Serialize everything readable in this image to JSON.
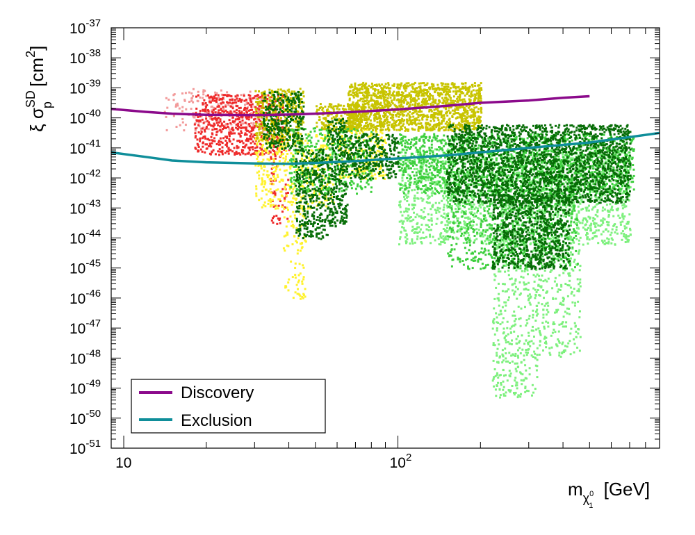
{
  "chart_data": {
    "type": "scatter",
    "title": "",
    "xlabel": "m",
    "xlabel_sub": "χ",
    "xlabel_sub_sup": "0",
    "xlabel_sub_sub": "1",
    "xlabel_unit": "[GeV]",
    "ylabel_prefix": "ξ σ",
    "ylabel_sup": "SD",
    "ylabel_sub": "p",
    "ylabel_unit_open": "[cm",
    "ylabel_unit_sup": "2",
    "ylabel_unit_close": "]",
    "x_scale": "log",
    "y_scale": "log",
    "xlim": [
      9,
      900
    ],
    "ylim_exponent": [
      -51,
      -37
    ],
    "x_ticks": [
      {
        "value": 10,
        "label": "10"
      },
      {
        "value": 100,
        "label": "10",
        "sup": "2"
      }
    ],
    "y_ticks": [
      {
        "exp": -37,
        "base": "10",
        "sup": "-37"
      },
      {
        "exp": -38,
        "base": "10",
        "sup": "-38"
      },
      {
        "exp": -39,
        "base": "10",
        "sup": "-39"
      },
      {
        "exp": -40,
        "base": "10",
        "sup": "-40"
      },
      {
        "exp": -41,
        "base": "10",
        "sup": "-41"
      },
      {
        "exp": -42,
        "base": "10",
        "sup": "-42"
      },
      {
        "exp": -43,
        "base": "10",
        "sup": "-43"
      },
      {
        "exp": -44,
        "base": "10",
        "sup": "-44"
      },
      {
        "exp": -45,
        "base": "10",
        "sup": "-45"
      },
      {
        "exp": -46,
        "base": "10",
        "sup": "-46"
      },
      {
        "exp": -47,
        "base": "10",
        "sup": "-47"
      },
      {
        "exp": -48,
        "base": "10",
        "sup": "-48"
      },
      {
        "exp": -49,
        "base": "10",
        "sup": "-49"
      },
      {
        "exp": -50,
        "base": "10",
        "sup": "-50"
      },
      {
        "exp": -51,
        "base": "10",
        "sup": "-51"
      }
    ],
    "grid": false,
    "legend_position": "bottom-left",
    "lines": [
      {
        "name": "Discovery",
        "color": "#8b0a8b",
        "points": [
          [
            9,
            -39.7
          ],
          [
            12,
            -39.8
          ],
          [
            15,
            -39.86
          ],
          [
            20,
            -39.9
          ],
          [
            30,
            -39.91
          ],
          [
            40,
            -39.89
          ],
          [
            50,
            -39.86
          ],
          [
            70,
            -39.8
          ],
          [
            100,
            -39.72
          ],
          [
            150,
            -39.6
          ],
          [
            200,
            -39.5
          ],
          [
            300,
            -39.42
          ],
          [
            400,
            -39.33
          ],
          [
            500,
            -39.28
          ]
        ]
      },
      {
        "name": "Exclusion",
        "color": "#0f8e9a",
        "points": [
          [
            9,
            -41.15
          ],
          [
            12,
            -41.3
          ],
          [
            15,
            -41.42
          ],
          [
            20,
            -41.48
          ],
          [
            30,
            -41.52
          ],
          [
            40,
            -41.53
          ],
          [
            50,
            -41.5
          ],
          [
            70,
            -41.44
          ],
          [
            100,
            -41.35
          ],
          [
            150,
            -41.25
          ],
          [
            200,
            -41.15
          ],
          [
            300,
            -41.0
          ],
          [
            500,
            -40.82
          ],
          [
            700,
            -40.64
          ],
          [
            900,
            -40.5
          ]
        ]
      }
    ],
    "point_clouds": [
      {
        "color": "#f29a9a",
        "regions": [
          {
            "x": [
              14,
              32
            ],
            "y": [
              -40.4,
              -39.0
            ],
            "n": 200
          }
        ]
      },
      {
        "color": "#ee2a2a",
        "regions": [
          {
            "x": [
              18,
              38
            ],
            "y": [
              -41.2,
              -39.2
            ],
            "n": 650
          },
          {
            "x": [
              34,
              40
            ],
            "y": [
              -43.5,
              -41.0
            ],
            "n": 60
          }
        ]
      },
      {
        "color": "#fff22e",
        "regions": [
          {
            "x": [
              30,
              58
            ],
            "y": [
              -43.0,
              -40.5
            ],
            "n": 450
          },
          {
            "x": [
              38,
              46
            ],
            "y": [
              -46.0,
              -43.0
            ],
            "n": 90
          },
          {
            "x": [
              60,
              90
            ],
            "y": [
              -42.0,
              -40.3
            ],
            "n": 220
          }
        ]
      },
      {
        "color": "#c8c400",
        "regions": [
          {
            "x": [
              30,
              45
            ],
            "y": [
              -40.8,
              -39.0
            ],
            "n": 350
          },
          {
            "x": [
              65,
              200
            ],
            "y": [
              -40.4,
              -38.8
            ],
            "n": 1500
          },
          {
            "x": [
              50,
              75
            ],
            "y": [
              -40.4,
              -39.5
            ],
            "n": 220
          }
        ]
      },
      {
        "color": "#7ef07e",
        "regions": [
          {
            "x": [
              100,
              700
            ],
            "y": [
              -44.2,
              -41.0
            ],
            "n": 1800
          },
          {
            "x": [
              220,
              320
            ],
            "y": [
              -49.3,
              -44.0
            ],
            "n": 400
          },
          {
            "x": [
              320,
              460
            ],
            "y": [
              -48.0,
              -44.0
            ],
            "n": 260
          }
        ]
      },
      {
        "color": "#3ecf3e",
        "regions": [
          {
            "x": [
              40,
              80
            ],
            "y": [
              -42.5,
              -40.3
            ],
            "n": 350
          },
          {
            "x": [
              100,
              720
            ],
            "y": [
              -42.5,
              -40.5
            ],
            "n": 1500
          },
          {
            "x": [
              150,
              450
            ],
            "y": [
              -45.0,
              -42.5
            ],
            "n": 600
          }
        ]
      },
      {
        "color": "#076d07",
        "regions": [
          {
            "x": [
              32,
              45
            ],
            "y": [
              -41.0,
              -39.1
            ],
            "n": 300
          },
          {
            "x": [
              42,
              55
            ],
            "y": [
              -44.0,
              -41.0
            ],
            "n": 350
          },
          {
            "x": [
              55,
              65
            ],
            "y": [
              -43.6,
              -40.0
            ],
            "n": 300
          },
          {
            "x": [
              65,
              100
            ],
            "y": [
              -42.0,
              -40.5
            ],
            "n": 300
          },
          {
            "x": [
              150,
              700
            ],
            "y": [
              -42.8,
              -40.2
            ],
            "n": 2200
          },
          {
            "x": [
              220,
              420
            ],
            "y": [
              -45.0,
              -42.5
            ],
            "n": 800
          }
        ]
      }
    ]
  },
  "legend": {
    "items": [
      {
        "label": "Discovery",
        "color": "#8b0a8b"
      },
      {
        "label": "Exclusion",
        "color": "#0f8e9a"
      }
    ]
  }
}
